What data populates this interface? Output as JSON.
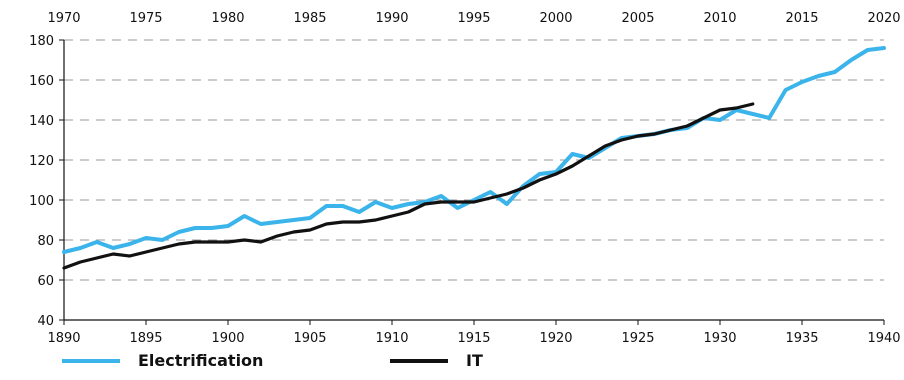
{
  "chart_data": {
    "type": "line",
    "title": "",
    "xlabel": "",
    "ylabel": "",
    "ylim": [
      40,
      180
    ],
    "yticks": [
      40,
      60,
      80,
      100,
      120,
      140,
      160,
      180
    ],
    "x_bottom": {
      "range": [
        1890,
        1940
      ],
      "ticks": [
        1890,
        1895,
        1900,
        1905,
        1910,
        1915,
        1920,
        1925,
        1930,
        1935,
        1940
      ]
    },
    "x_top": {
      "range": [
        1970,
        2020
      ],
      "ticks": [
        1970,
        1975,
        1980,
        1985,
        1990,
        1995,
        2000,
        2005,
        2010,
        2015,
        2020
      ]
    },
    "grid": "horizontal dashed",
    "legend_position": "bottom",
    "series": [
      {
        "name": "Electrification",
        "axis": "bottom",
        "color": "#3ab4ea",
        "x": [
          1890,
          1891,
          1892,
          1893,
          1894,
          1895,
          1896,
          1897,
          1898,
          1899,
          1900,
          1901,
          1902,
          1903,
          1904,
          1905,
          1906,
          1907,
          1908,
          1909,
          1910,
          1911,
          1912,
          1913,
          1914,
          1915,
          1916,
          1917,
          1918,
          1919,
          1920,
          1921,
          1922,
          1923,
          1924,
          1925,
          1926,
          1927,
          1928,
          1929,
          1930,
          1931,
          1932,
          1933,
          1934,
          1935,
          1936,
          1937,
          1938,
          1939,
          1940
        ],
        "values": [
          74,
          76,
          79,
          76,
          78,
          81,
          80,
          84,
          86,
          86,
          87,
          92,
          88,
          89,
          90,
          91,
          97,
          97,
          94,
          99,
          96,
          98,
          99,
          102,
          96,
          100,
          104,
          98,
          107,
          113,
          114,
          123,
          121,
          126,
          131,
          132,
          133,
          135,
          136,
          141,
          140,
          145,
          143,
          141,
          155,
          159,
          162,
          164,
          170,
          175,
          176
        ]
      },
      {
        "name": "IT",
        "axis": "top",
        "color": "#111111",
        "x": [
          1970,
          1971,
          1972,
          1973,
          1974,
          1975,
          1976,
          1977,
          1978,
          1979,
          1980,
          1981,
          1982,
          1983,
          1984,
          1985,
          1986,
          1987,
          1988,
          1989,
          1990,
          1991,
          1992,
          1993,
          1994,
          1995,
          1996,
          1997,
          1998,
          1999,
          2000,
          2001,
          2002,
          2003,
          2004,
          2005,
          2006,
          2007,
          2008,
          2009,
          2010,
          2011,
          2012
        ],
        "values": [
          66,
          69,
          71,
          73,
          72,
          74,
          76,
          78,
          79,
          79,
          79,
          80,
          79,
          82,
          84,
          85,
          88,
          89,
          89,
          90,
          92,
          94,
          98,
          99,
          99,
          99,
          101,
          103,
          106,
          110,
          113,
          117,
          122,
          127,
          130,
          132,
          133,
          135,
          137,
          141,
          145,
          146,
          148
        ]
      }
    ]
  }
}
